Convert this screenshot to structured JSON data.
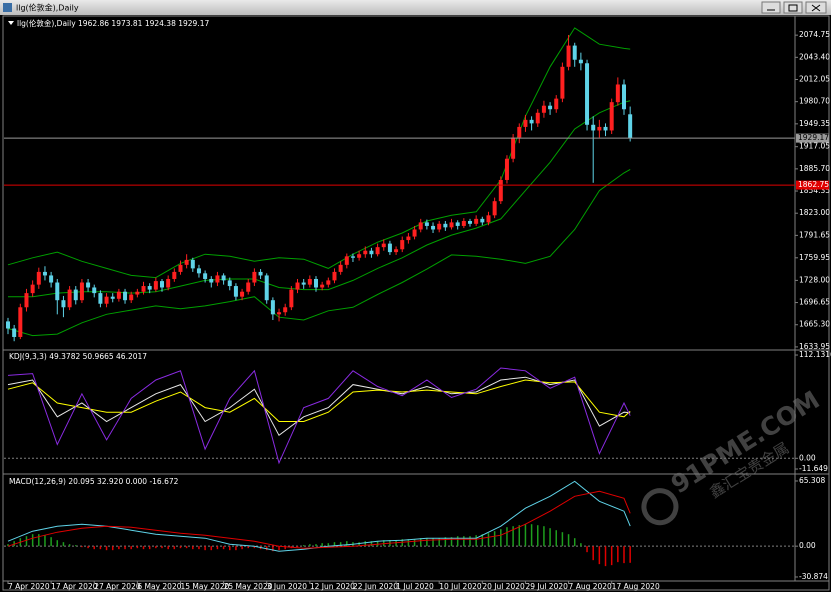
{
  "window_title": "llg(伦敦金),Daily",
  "watermark": {
    "text": "91PME.COM",
    "subtext": "鑫汇宝贵金属"
  },
  "chart_data": [
    {
      "type": "candlestick",
      "header": "llg(伦敦金),Daily  1962.86 1973.81 1924.38 1929.17",
      "up_color": "#ff2020",
      "down_color": "#5fd3e8",
      "ohlc": [
        [
          1670,
          1675,
          1652,
          1660
        ],
        [
          1660,
          1665,
          1642,
          1648
        ],
        [
          1648,
          1695,
          1645,
          1690
        ],
        [
          1690,
          1716,
          1684,
          1710
        ],
        [
          1710,
          1728,
          1705,
          1722
        ],
        [
          1722,
          1746,
          1716,
          1740
        ],
        [
          1740,
          1748,
          1728,
          1735
        ],
        [
          1735,
          1740,
          1718,
          1725
        ],
        [
          1725,
          1730,
          1680,
          1700
        ],
        [
          1700,
          1706,
          1676,
          1690
        ],
        [
          1690,
          1720,
          1686,
          1715
        ],
        [
          1715,
          1720,
          1694,
          1700
        ],
        [
          1700,
          1730,
          1696,
          1725
        ],
        [
          1725,
          1730,
          1712,
          1718
        ],
        [
          1718,
          1722,
          1704,
          1710
        ],
        [
          1710,
          1714,
          1690,
          1695
        ],
        [
          1695,
          1710,
          1690,
          1705
        ],
        [
          1705,
          1710,
          1697,
          1702
        ],
        [
          1702,
          1716,
          1698,
          1712
        ],
        [
          1712,
          1716,
          1695,
          1700
        ],
        [
          1700,
          1712,
          1696,
          1708
        ],
        [
          1708,
          1716,
          1704,
          1712
        ],
        [
          1712,
          1726,
          1708,
          1720
        ],
        [
          1720,
          1724,
          1710,
          1715
        ],
        [
          1715,
          1732,
          1712,
          1727
        ],
        [
          1727,
          1730,
          1712,
          1718
        ],
        [
          1718,
          1735,
          1714,
          1730
        ],
        [
          1730,
          1745,
          1726,
          1740
        ],
        [
          1740,
          1756,
          1736,
          1750
        ],
        [
          1750,
          1765,
          1745,
          1757
        ],
        [
          1757,
          1760,
          1740,
          1745
        ],
        [
          1745,
          1750,
          1732,
          1738
        ],
        [
          1738,
          1742,
          1725,
          1730
        ],
        [
          1730,
          1734,
          1718,
          1725
        ],
        [
          1725,
          1740,
          1720,
          1735
        ],
        [
          1735,
          1738,
          1722,
          1728
        ],
        [
          1728,
          1732,
          1714,
          1720
        ],
        [
          1720,
          1724,
          1700,
          1705
        ],
        [
          1705,
          1716,
          1700,
          1712
        ],
        [
          1712,
          1730,
          1708,
          1725
        ],
        [
          1725,
          1745,
          1720,
          1740
        ],
        [
          1740,
          1744,
          1730,
          1735
        ],
        [
          1735,
          1738,
          1695,
          1700
        ],
        [
          1700,
          1704,
          1672,
          1680
        ],
        [
          1680,
          1688,
          1670,
          1683
        ],
        [
          1683,
          1695,
          1678,
          1690
        ],
        [
          1690,
          1720,
          1686,
          1715
        ],
        [
          1715,
          1730,
          1710,
          1725
        ],
        [
          1725,
          1730,
          1716,
          1722
        ],
        [
          1722,
          1735,
          1718,
          1730
        ],
        [
          1730,
          1734,
          1712,
          1718
        ],
        [
          1718,
          1726,
          1714,
          1722
        ],
        [
          1722,
          1732,
          1718,
          1728
        ],
        [
          1728,
          1745,
          1724,
          1740
        ],
        [
          1740,
          1755,
          1736,
          1750
        ],
        [
          1750,
          1766,
          1745,
          1762
        ],
        [
          1762,
          1766,
          1754,
          1760
        ],
        [
          1760,
          1770,
          1756,
          1765
        ],
        [
          1765,
          1776,
          1760,
          1770
        ],
        [
          1770,
          1774,
          1760,
          1765
        ],
        [
          1765,
          1780,
          1762,
          1775
        ],
        [
          1775,
          1786,
          1770,
          1780
        ],
        [
          1780,
          1784,
          1764,
          1768
        ],
        [
          1768,
          1776,
          1764,
          1772
        ],
        [
          1772,
          1790,
          1768,
          1785
        ],
        [
          1785,
          1795,
          1780,
          1790
        ],
        [
          1790,
          1805,
          1786,
          1800
        ],
        [
          1800,
          1815,
          1796,
          1810
        ],
        [
          1810,
          1814,
          1800,
          1805
        ],
        [
          1805,
          1810,
          1795,
          1800
        ],
        [
          1800,
          1812,
          1796,
          1808
        ],
        [
          1808,
          1812,
          1798,
          1803
        ],
        [
          1803,
          1815,
          1800,
          1810
        ],
        [
          1810,
          1813,
          1800,
          1805
        ],
        [
          1805,
          1816,
          1802,
          1812
        ],
        [
          1812,
          1815,
          1804,
          1808
        ],
        [
          1808,
          1820,
          1805,
          1815
        ],
        [
          1815,
          1818,
          1806,
          1810
        ],
        [
          1810,
          1825,
          1806,
          1820
        ],
        [
          1820,
          1845,
          1816,
          1840
        ],
        [
          1840,
          1875,
          1836,
          1870
        ],
        [
          1870,
          1905,
          1865,
          1900
        ],
        [
          1900,
          1935,
          1895,
          1930
        ],
        [
          1930,
          1950,
          1922,
          1945
        ],
        [
          1945,
          1962,
          1938,
          1955
        ],
        [
          1955,
          1960,
          1940,
          1950
        ],
        [
          1950,
          1970,
          1945,
          1965
        ],
        [
          1965,
          1982,
          1958,
          1975
        ],
        [
          1975,
          1980,
          1962,
          1970
        ],
        [
          1970,
          1990,
          1965,
          1985
        ],
        [
          1985,
          2036,
          1980,
          2030
        ],
        [
          2030,
          2075,
          2025,
          2060
        ],
        [
          2060,
          2064,
          2030,
          2040
        ],
        [
          2040,
          2050,
          2025,
          2035
        ],
        [
          2035,
          2040,
          1940,
          1948
        ],
        [
          1948,
          1960,
          1866,
          1940
        ],
        [
          1940,
          1955,
          1930,
          1945
        ],
        [
          1945,
          1950,
          1932,
          1940
        ],
        [
          1940,
          1985,
          1935,
          1980
        ],
        [
          1980,
          2015,
          1975,
          2005
        ],
        [
          2005,
          2012,
          1962,
          1970
        ],
        [
          1962.86,
          1973.81,
          1924.38,
          1929.17
        ]
      ],
      "bands": {
        "color": "#00a000",
        "x": [
          0,
          4,
          8,
          12,
          16,
          20,
          24,
          28,
          32,
          36,
          40,
          44,
          48,
          52,
          56,
          60,
          64,
          68,
          72,
          76,
          80,
          84,
          88,
          92,
          96,
          100,
          101
        ],
        "upper": [
          1750,
          1760,
          1768,
          1755,
          1745,
          1735,
          1732,
          1752,
          1765,
          1762,
          1755,
          1760,
          1758,
          1745,
          1765,
          1782,
          1795,
          1812,
          1820,
          1825,
          1870,
          1960,
          2030,
          2085,
          2062,
          2056,
          2055
        ],
        "middle": [
          1705,
          1705,
          1710,
          1712,
          1712,
          1710,
          1712,
          1720,
          1728,
          1730,
          1730,
          1718,
          1715,
          1715,
          1728,
          1745,
          1760,
          1778,
          1792,
          1802,
          1815,
          1855,
          1895,
          1942,
          1965,
          1980,
          1982
        ],
        "lower": [
          1660,
          1650,
          1652,
          1668,
          1680,
          1686,
          1692,
          1688,
          1692,
          1698,
          1705,
          1676,
          1672,
          1685,
          1690,
          1708,
          1725,
          1744,
          1764,
          1762,
          1758,
          1752,
          1762,
          1800,
          1855,
          1880,
          1885
        ]
      },
      "price_line_color": "#9a9a9a",
      "alert_line": {
        "value": 1862.75,
        "color": "#e00000"
      },
      "ylim": [
        1631,
        2099
      ],
      "yticks": [
        2074.75,
        {
          "value": 2043.4,
          "label": "2043.40"
        },
        2012.05,
        {
          "value": 1980.7,
          "label": "1980.70"
        },
        1949.35,
        1917.05,
        {
          "value": 1885.7,
          "label": "1885.70"
        },
        1854.35,
        {
          "value": 1823,
          "label": "1823.00"
        },
        1791.65,
        1759.95,
        {
          "value": 1728,
          "label": "1728.00"
        },
        1696.65,
        {
          "value": 1665.3,
          "label": "1665.30"
        },
        1633.95
      ],
      "xticks": [
        {
          "value": 0,
          "label": "7 Apr 2020"
        },
        {
          "value": 7,
          "label": "17 Apr 2020"
        },
        {
          "value": 14,
          "label": "27 Apr 2020"
        },
        {
          "value": 21,
          "label": "6 May 2020"
        },
        {
          "value": 28,
          "label": "15 May 2020"
        },
        {
          "value": 35,
          "label": "25 May 2020"
        },
        {
          "value": 42,
          "label": "3 Jun 2020"
        },
        {
          "value": 49,
          "label": "12 Jun 2020"
        },
        {
          "value": 56,
          "label": "22 Jun 2020"
        },
        {
          "value": 63,
          "label": "1 Jul 2020"
        },
        {
          "value": 70,
          "label": "10 Jul 2020"
        },
        {
          "value": 77,
          "label": "20 Jul 2020"
        },
        {
          "value": 84,
          "label": "29 Jul 2020"
        },
        {
          "value": 91,
          "label": "7 Aug 2020"
        },
        {
          "value": 98,
          "label": "17 Aug 2020"
        }
      ]
    },
    {
      "type": "line",
      "header": "KDJ(9,3,3) 49.3782 50.9665 46.2017",
      "x": [
        0,
        4,
        8,
        12,
        16,
        20,
        24,
        28,
        32,
        36,
        40,
        44,
        48,
        52,
        56,
        60,
        64,
        68,
        72,
        76,
        80,
        84,
        88,
        92,
        96,
        100,
        101
      ],
      "series": [
        {
          "color": "#e8e8e8",
          "values": [
            80,
            85,
            45,
            60,
            40,
            55,
            70,
            80,
            40,
            55,
            75,
            25,
            45,
            55,
            80,
            75,
            70,
            78,
            70,
            72,
            85,
            88,
            80,
            85,
            35,
            50,
            49.4
          ]
        },
        {
          "color": "#ffff00",
          "values": [
            75,
            82,
            60,
            55,
            50,
            50,
            62,
            72,
            55,
            50,
            65,
            40,
            40,
            50,
            72,
            74,
            72,
            74,
            72,
            70,
            78,
            85,
            82,
            83,
            50,
            45,
            51
          ]
        },
        {
          "color": "#8a2be2",
          "values": [
            90,
            92,
            15,
            70,
            20,
            65,
            85,
            95,
            10,
            65,
            95,
            -5,
            55,
            65,
            95,
            78,
            68,
            85,
            66,
            75,
            98,
            95,
            76,
            88,
            5,
            60,
            46.2
          ]
        }
      ],
      "ylim": [
        -13.8,
        116.5
      ],
      "yticks": [
        112.1316,
        {
          "value": 0,
          "label": "0.00"
        },
        -11.649
      ]
    },
    {
      "type": "macd",
      "header": "MACD(12,26,9) 20.095 32.920 0.000 -16.672",
      "histogram": {
        "pos_color": "#1e9e1e",
        "neg_color": "#e00000",
        "values": [
          2,
          5,
          8,
          10,
          12,
          12,
          11,
          9,
          6,
          4,
          2,
          1,
          -1,
          -2,
          -3,
          -3,
          -4,
          -4,
          -3,
          -3,
          -3,
          -2,
          -3,
          -3,
          -2,
          -2,
          -3,
          -3,
          -2,
          -2,
          -3,
          -3,
          -4,
          -4,
          -3,
          -3,
          -4,
          -4,
          -3,
          -2,
          -2,
          -3,
          -4,
          -5,
          -4,
          -3,
          -2,
          -1,
          1,
          2,
          2,
          3,
          3,
          4,
          4,
          5,
          4,
          4,
          5,
          5,
          5,
          6,
          6,
          6,
          7,
          7,
          7,
          8,
          8,
          8,
          8,
          9,
          9,
          10,
          10,
          10,
          11,
          12,
          13,
          15,
          17,
          19,
          20,
          21,
          22,
          22,
          21,
          20,
          18,
          16,
          14,
          12,
          8,
          3,
          -6,
          -14,
          -18,
          -20,
          -19,
          -16,
          -17,
          -16.672
        ]
      },
      "x": [
        0,
        4,
        8,
        12,
        16,
        20,
        24,
        28,
        32,
        36,
        40,
        44,
        48,
        52,
        56,
        60,
        64,
        68,
        72,
        76,
        80,
        84,
        88,
        92,
        96,
        100,
        101
      ],
      "series": [
        {
          "color": "#5fd3e8",
          "values": [
            5,
            15,
            20,
            22,
            20,
            16,
            12,
            10,
            8,
            2,
            0,
            -5,
            -3,
            0,
            2,
            5,
            6,
            8,
            8,
            8,
            20,
            38,
            50,
            65,
            45,
            35,
            20.095
          ]
        },
        {
          "color": "#e00000",
          "values": [
            0,
            8,
            14,
            18,
            20,
            19,
            16,
            13,
            11,
            8,
            5,
            0,
            -2,
            -1,
            0,
            2,
            4,
            6,
            7,
            7,
            11,
            22,
            35,
            50,
            55,
            48,
            32.92
          ]
        }
      ],
      "ylim": [
        -33.9,
        70.3
      ],
      "yticks": [
        65.308,
        {
          "value": 0,
          "label": "0.00"
        },
        -30.874
      ]
    }
  ]
}
